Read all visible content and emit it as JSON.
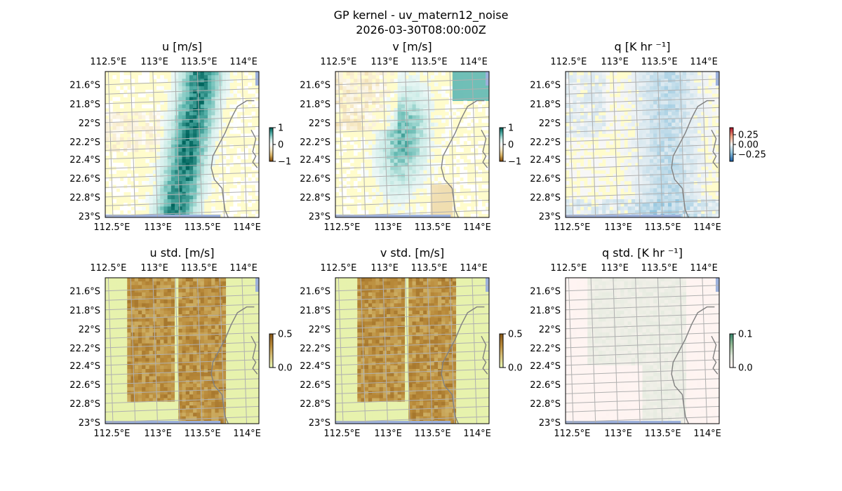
{
  "suptitle_line1": "GP kernel - uv_matern12_noise",
  "suptitle_line2": "2026-03-30T08:00:00Z",
  "colors": {
    "land": "#fffccc",
    "ocean": "#9db1dc",
    "grid": "#b0b0b0",
    "coast": "#808080"
  },
  "chart_data": [
    {
      "type": "heatmap",
      "title": "u [m/s]",
      "x_ticks": [
        "112.5°E",
        "113°E",
        "113.5°E",
        "114°E"
      ],
      "y_ticks": [
        "21.6°S",
        "21.8°S",
        "22°S",
        "22.2°S",
        "22.4°S",
        "22.6°S",
        "22.8°S",
        "23°S"
      ],
      "colormap": "BrBG (brown-white-green)",
      "colorbar_ticks": [
        "1",
        "0",
        "−1"
      ],
      "colorbar_range": [
        -1,
        1
      ]
    },
    {
      "type": "heatmap",
      "title": "v [m/s]",
      "x_ticks": [
        "112.5°E",
        "113°E",
        "113.5°E",
        "114°E"
      ],
      "y_ticks": [
        "21.6°S",
        "21.8°S",
        "22°S",
        "22.2°S",
        "22.4°S",
        "22.6°S",
        "22.8°S",
        "23°S"
      ],
      "colormap": "BrBG (brown-white-teal)",
      "colorbar_ticks": [
        "1",
        "0",
        "−1"
      ],
      "colorbar_range": [
        -1,
        1
      ]
    },
    {
      "type": "heatmap",
      "title": "q [K hr ⁻¹]",
      "x_ticks": [
        "112.5°E",
        "113°E",
        "113.5°E",
        "114°E"
      ],
      "y_ticks": [
        "21.6°S",
        "21.8°S",
        "22°S",
        "22.2°S",
        "22.4°S",
        "22.6°S",
        "22.8°S",
        "23°S"
      ],
      "colormap": "RdBu_r (red-white-blue)",
      "colorbar_ticks": [
        "0.25",
        "0.00",
        "−0.25"
      ],
      "colorbar_range": [
        -0.3,
        0.3
      ]
    },
    {
      "type": "heatmap",
      "title": "u std. [m/s]",
      "x_ticks": [
        "112.5°E",
        "113°E",
        "113.5°E",
        "114°E"
      ],
      "y_ticks": [
        "21.6°S",
        "21.8°S",
        "22°S",
        "22.2°S",
        "22.4°S",
        "22.6°S",
        "22.8°S",
        "23°S"
      ],
      "colormap": "brown-yellow sequential",
      "colorbar_ticks": [
        "0.5",
        "0.0"
      ],
      "colorbar_range": [
        0,
        0.5
      ]
    },
    {
      "type": "heatmap",
      "title": "v std. [m/s]",
      "x_ticks": [
        "112.5°E",
        "113°E",
        "113.5°E",
        "114°E"
      ],
      "y_ticks": [
        "21.6°S",
        "21.8°S",
        "22°S",
        "22.2°S",
        "22.4°S",
        "22.6°S",
        "22.8°S",
        "23°S"
      ],
      "colormap": "brown-yellow sequential",
      "colorbar_ticks": [
        "0.5",
        "0.0"
      ],
      "colorbar_range": [
        0,
        0.5
      ]
    },
    {
      "type": "heatmap",
      "title": "q std. [K hr ⁻¹]",
      "x_ticks": [
        "112.5°E",
        "113°E",
        "113.5°E",
        "114°E"
      ],
      "y_ticks": [
        "21.6°S",
        "21.8°S",
        "22°S",
        "22.2°S",
        "22.4°S",
        "22.6°S",
        "22.8°S",
        "23°S"
      ],
      "colormap": "pink-white-green sequential",
      "colorbar_ticks": [
        "0.1",
        "0.0"
      ],
      "colorbar_range": [
        0,
        0.1
      ]
    }
  ]
}
